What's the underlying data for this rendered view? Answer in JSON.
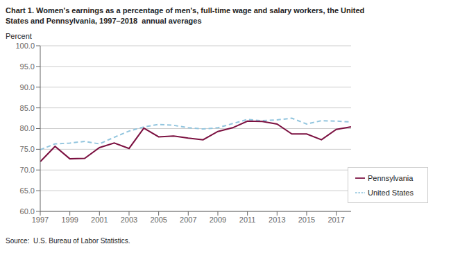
{
  "chart_data": {
    "type": "line",
    "title": "Chart 1. Women's earnings as a percentage of men's, full-time wage and salary workers, the United\nStates and Pennsylvania, 1997–2018  annual averages",
    "ylabel": "Percent",
    "source": "Source:  U.S. Bureau of Labor Statistics.",
    "x": [
      1997,
      1998,
      1999,
      2000,
      2001,
      2002,
      2003,
      2004,
      2005,
      2006,
      2007,
      2008,
      2009,
      2010,
      2011,
      2012,
      2013,
      2014,
      2015,
      2016,
      2017,
      2018
    ],
    "series": [
      {
        "name": "United States",
        "color": "#92C5DE",
        "line_style": "dashed",
        "values": [
          74.9,
          76.3,
          76.5,
          76.9,
          76.3,
          77.9,
          79.4,
          80.4,
          81.0,
          80.8,
          80.2,
          79.9,
          80.2,
          81.2,
          82.2,
          81.9,
          82.1,
          82.5,
          81.1,
          81.9,
          81.8,
          81.6
        ]
      },
      {
        "name": "Pennsylvania",
        "color": "#7B1040",
        "line_style": "solid",
        "values": [
          72.0,
          75.7,
          72.7,
          72.8,
          75.4,
          76.5,
          75.2,
          80.1,
          78.0,
          78.2,
          77.7,
          77.3,
          79.3,
          80.2,
          81.8,
          81.7,
          81.1,
          78.7,
          78.7,
          77.3,
          79.8,
          80.4
        ]
      }
    ],
    "xlim": [
      1997,
      2018
    ],
    "xticks": [
      1997,
      1999,
      2001,
      2003,
      2005,
      2007,
      2009,
      2011,
      2013,
      2015,
      2017
    ],
    "ylim": [
      60.0,
      100.0
    ],
    "yticks": [
      {
        "value": 60.0,
        "label": "60.0"
      },
      {
        "value": 65.0,
        "label": "65.0"
      },
      {
        "value": 70.0,
        "label": "70.0"
      },
      {
        "value": 75.0,
        "label": "75.0"
      },
      {
        "value": 80.0,
        "label": "80.0"
      },
      {
        "value": 85.0,
        "label": "85.0"
      },
      {
        "value": 90.0,
        "label": "90.0"
      },
      {
        "value": 95.0,
        "label": "95.0"
      },
      {
        "value": 100.0,
        "label": "100.0"
      }
    ],
    "grid": true,
    "legend": "lower right"
  }
}
